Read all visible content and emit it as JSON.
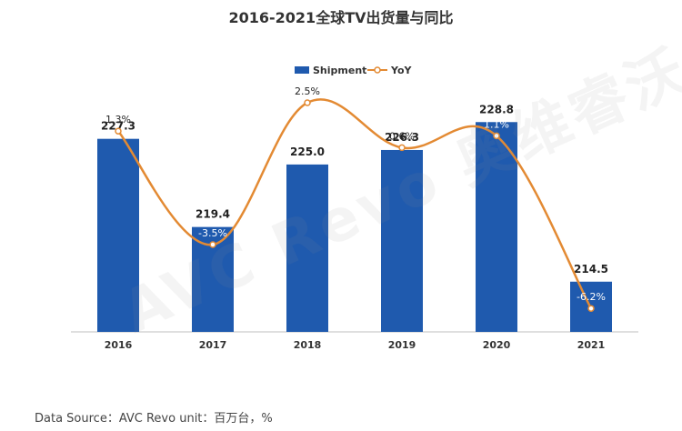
{
  "chart_data": {
    "type": "bar",
    "title": "2016-2021全球TV出货量与同比",
    "categories": [
      "2016",
      "2017",
      "2018",
      "2019",
      "2020",
      "2021"
    ],
    "series": [
      {
        "name": "Shipment",
        "type": "bar",
        "values": [
          227.3,
          219.4,
          225.0,
          226.3,
          228.8,
          214.5
        ],
        "labels": [
          "227.3",
          "219.4",
          "225.0",
          "226.3",
          "228.8",
          "214.5"
        ]
      },
      {
        "name": "YoY",
        "type": "line",
        "values": [
          1.3,
          -3.5,
          2.5,
          0.6,
          1.1,
          -6.2
        ],
        "labels": [
          "1.3%",
          "-3.5%",
          "2.5%",
          "0.6%",
          "1.1%",
          "-6.2%"
        ]
      }
    ],
    "ylim_bar": [
      210,
      232
    ],
    "ylim_line": [
      -7,
      3
    ],
    "legend_position": "top-center",
    "grid": false,
    "colors": {
      "bar": "#1F5AAE",
      "line": "#E38A33",
      "text": "#222222",
      "axis": "#BFBFBF"
    }
  },
  "watermark": "AVC Revo 奥维睿沃",
  "source": {
    "text": "Data Source：AVC Revo  unit：百万台，%"
  }
}
